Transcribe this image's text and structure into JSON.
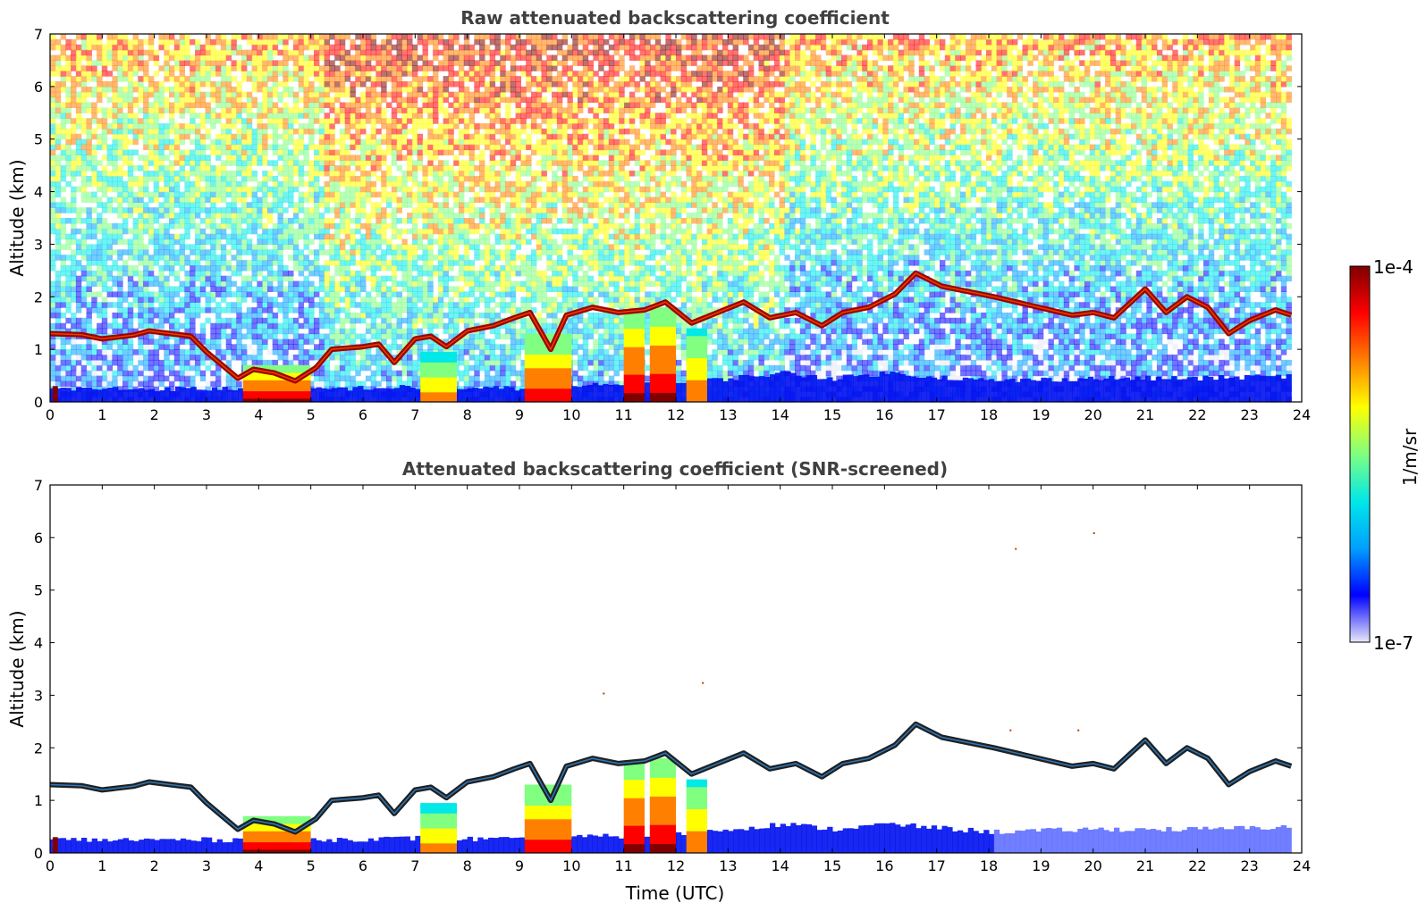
{
  "chart_data": [
    {
      "type": "heatmap",
      "title": "Raw attenuated backscattering coefficient",
      "xlabel": "",
      "ylabel": "Altitude (km)",
      "xlim": [
        0,
        24
      ],
      "ylim": [
        0,
        7
      ],
      "x_ticks": [
        "0",
        "1",
        "2",
        "3",
        "4",
        "5",
        "6",
        "7",
        "8",
        "9",
        "10",
        "11",
        "12",
        "13",
        "14",
        "15",
        "16",
        "17",
        "18",
        "19",
        "20",
        "21",
        "22",
        "23",
        "24"
      ],
      "y_ticks": [
        "0",
        "1",
        "2",
        "3",
        "4",
        "5",
        "6",
        "7"
      ],
      "data_end_time": 23.8,
      "screened": false
    },
    {
      "type": "heatmap",
      "title": "Attenuated backscattering coefficient (SNR-screened)",
      "xlabel": "Time (UTC)",
      "ylabel": "Altitude (km)",
      "xlim": [
        0,
        24
      ],
      "ylim": [
        0,
        7
      ],
      "x_ticks": [
        "0",
        "1",
        "2",
        "3",
        "4",
        "5",
        "6",
        "7",
        "8",
        "9",
        "10",
        "11",
        "12",
        "13",
        "14",
        "15",
        "16",
        "17",
        "18",
        "19",
        "20",
        "21",
        "22",
        "23",
        "24"
      ],
      "y_ticks": [
        "0",
        "1",
        "2",
        "3",
        "4",
        "5",
        "6",
        "7"
      ],
      "data_end_time": 23.8,
      "screened": true
    }
  ],
  "colorbar": {
    "label": "1/m/sr",
    "max_label": "1e-4",
    "min_label": "1e-7",
    "scale": "log",
    "colormap": [
      "#e8e8f8",
      "#0000ff",
      "#00a0ff",
      "#00e8e8",
      "#80ff80",
      "#ffff00",
      "#ff8000",
      "#ff0000",
      "#800000"
    ]
  },
  "cloud_layers": [
    [
      0.0,
      1.3
    ],
    [
      0.6,
      1.28
    ],
    [
      1.0,
      1.2
    ],
    [
      1.6,
      1.27
    ],
    [
      1.9,
      1.35
    ],
    [
      2.3,
      1.3
    ],
    [
      2.7,
      1.25
    ],
    [
      3.0,
      0.95
    ],
    [
      3.3,
      0.7
    ],
    [
      3.6,
      0.45
    ],
    [
      3.9,
      0.62
    ],
    [
      4.3,
      0.55
    ],
    [
      4.7,
      0.4
    ],
    [
      5.1,
      0.65
    ],
    [
      5.4,
      1.0
    ],
    [
      6.0,
      1.05
    ],
    [
      6.3,
      1.1
    ],
    [
      6.6,
      0.75
    ],
    [
      7.0,
      1.2
    ],
    [
      7.3,
      1.25
    ],
    [
      7.6,
      1.05
    ],
    [
      8.0,
      1.35
    ],
    [
      8.5,
      1.45
    ],
    [
      8.9,
      1.6
    ],
    [
      9.2,
      1.7
    ],
    [
      9.6,
      1.0
    ],
    [
      9.9,
      1.65
    ],
    [
      10.4,
      1.8
    ],
    [
      10.9,
      1.7
    ],
    [
      11.4,
      1.75
    ],
    [
      11.8,
      1.9
    ],
    [
      12.3,
      1.5
    ],
    [
      12.8,
      1.7
    ],
    [
      13.3,
      1.9
    ],
    [
      13.8,
      1.6
    ],
    [
      14.3,
      1.7
    ],
    [
      14.8,
      1.45
    ],
    [
      15.2,
      1.7
    ],
    [
      15.7,
      1.8
    ],
    [
      16.2,
      2.05
    ],
    [
      16.6,
      2.45
    ],
    [
      17.1,
      2.2
    ],
    [
      17.6,
      2.1
    ],
    [
      18.1,
      2.0
    ],
    [
      19.6,
      1.65
    ],
    [
      20.0,
      1.7
    ],
    [
      20.4,
      1.6
    ],
    [
      21.0,
      2.15
    ],
    [
      21.4,
      1.7
    ],
    [
      21.8,
      2.0
    ],
    [
      22.2,
      1.8
    ],
    [
      22.6,
      1.3
    ],
    [
      23.0,
      1.55
    ],
    [
      23.5,
      1.75
    ],
    [
      23.8,
      1.65
    ]
  ],
  "plumes": [
    [
      0.05,
      0.15,
      0.3,
      2.4
    ],
    [
      3.7,
      5.0,
      0.7,
      0.95
    ],
    [
      7.1,
      7.8,
      0.95,
      0.75
    ],
    [
      9.1,
      10.0,
      1.3,
      0.9
    ],
    [
      11.0,
      11.4,
      1.75,
      0.95
    ],
    [
      11.5,
      12.0,
      1.8,
      0.95
    ],
    [
      12.2,
      12.6,
      1.4,
      0.8
    ]
  ],
  "boundary_layer": [
    [
      5.0,
      0.25
    ],
    [
      7.0,
      0.28
    ],
    [
      9.0,
      0.25
    ],
    [
      10.0,
      0.3
    ],
    [
      12.0,
      0.35
    ],
    [
      14.0,
      0.55
    ],
    [
      15.0,
      0.45
    ],
    [
      16.0,
      0.55
    ],
    [
      18.0,
      0.4
    ],
    [
      20.0,
      0.45
    ],
    [
      22.0,
      0.45
    ],
    [
      23.8,
      0.5
    ]
  ],
  "speckles": [
    [
      20.0,
      6.1
    ],
    [
      18.5,
      5.8
    ],
    [
      10.6,
      3.05
    ],
    [
      12.5,
      3.25
    ],
    [
      19.7,
      2.35
    ],
    [
      18.4,
      2.35
    ]
  ]
}
